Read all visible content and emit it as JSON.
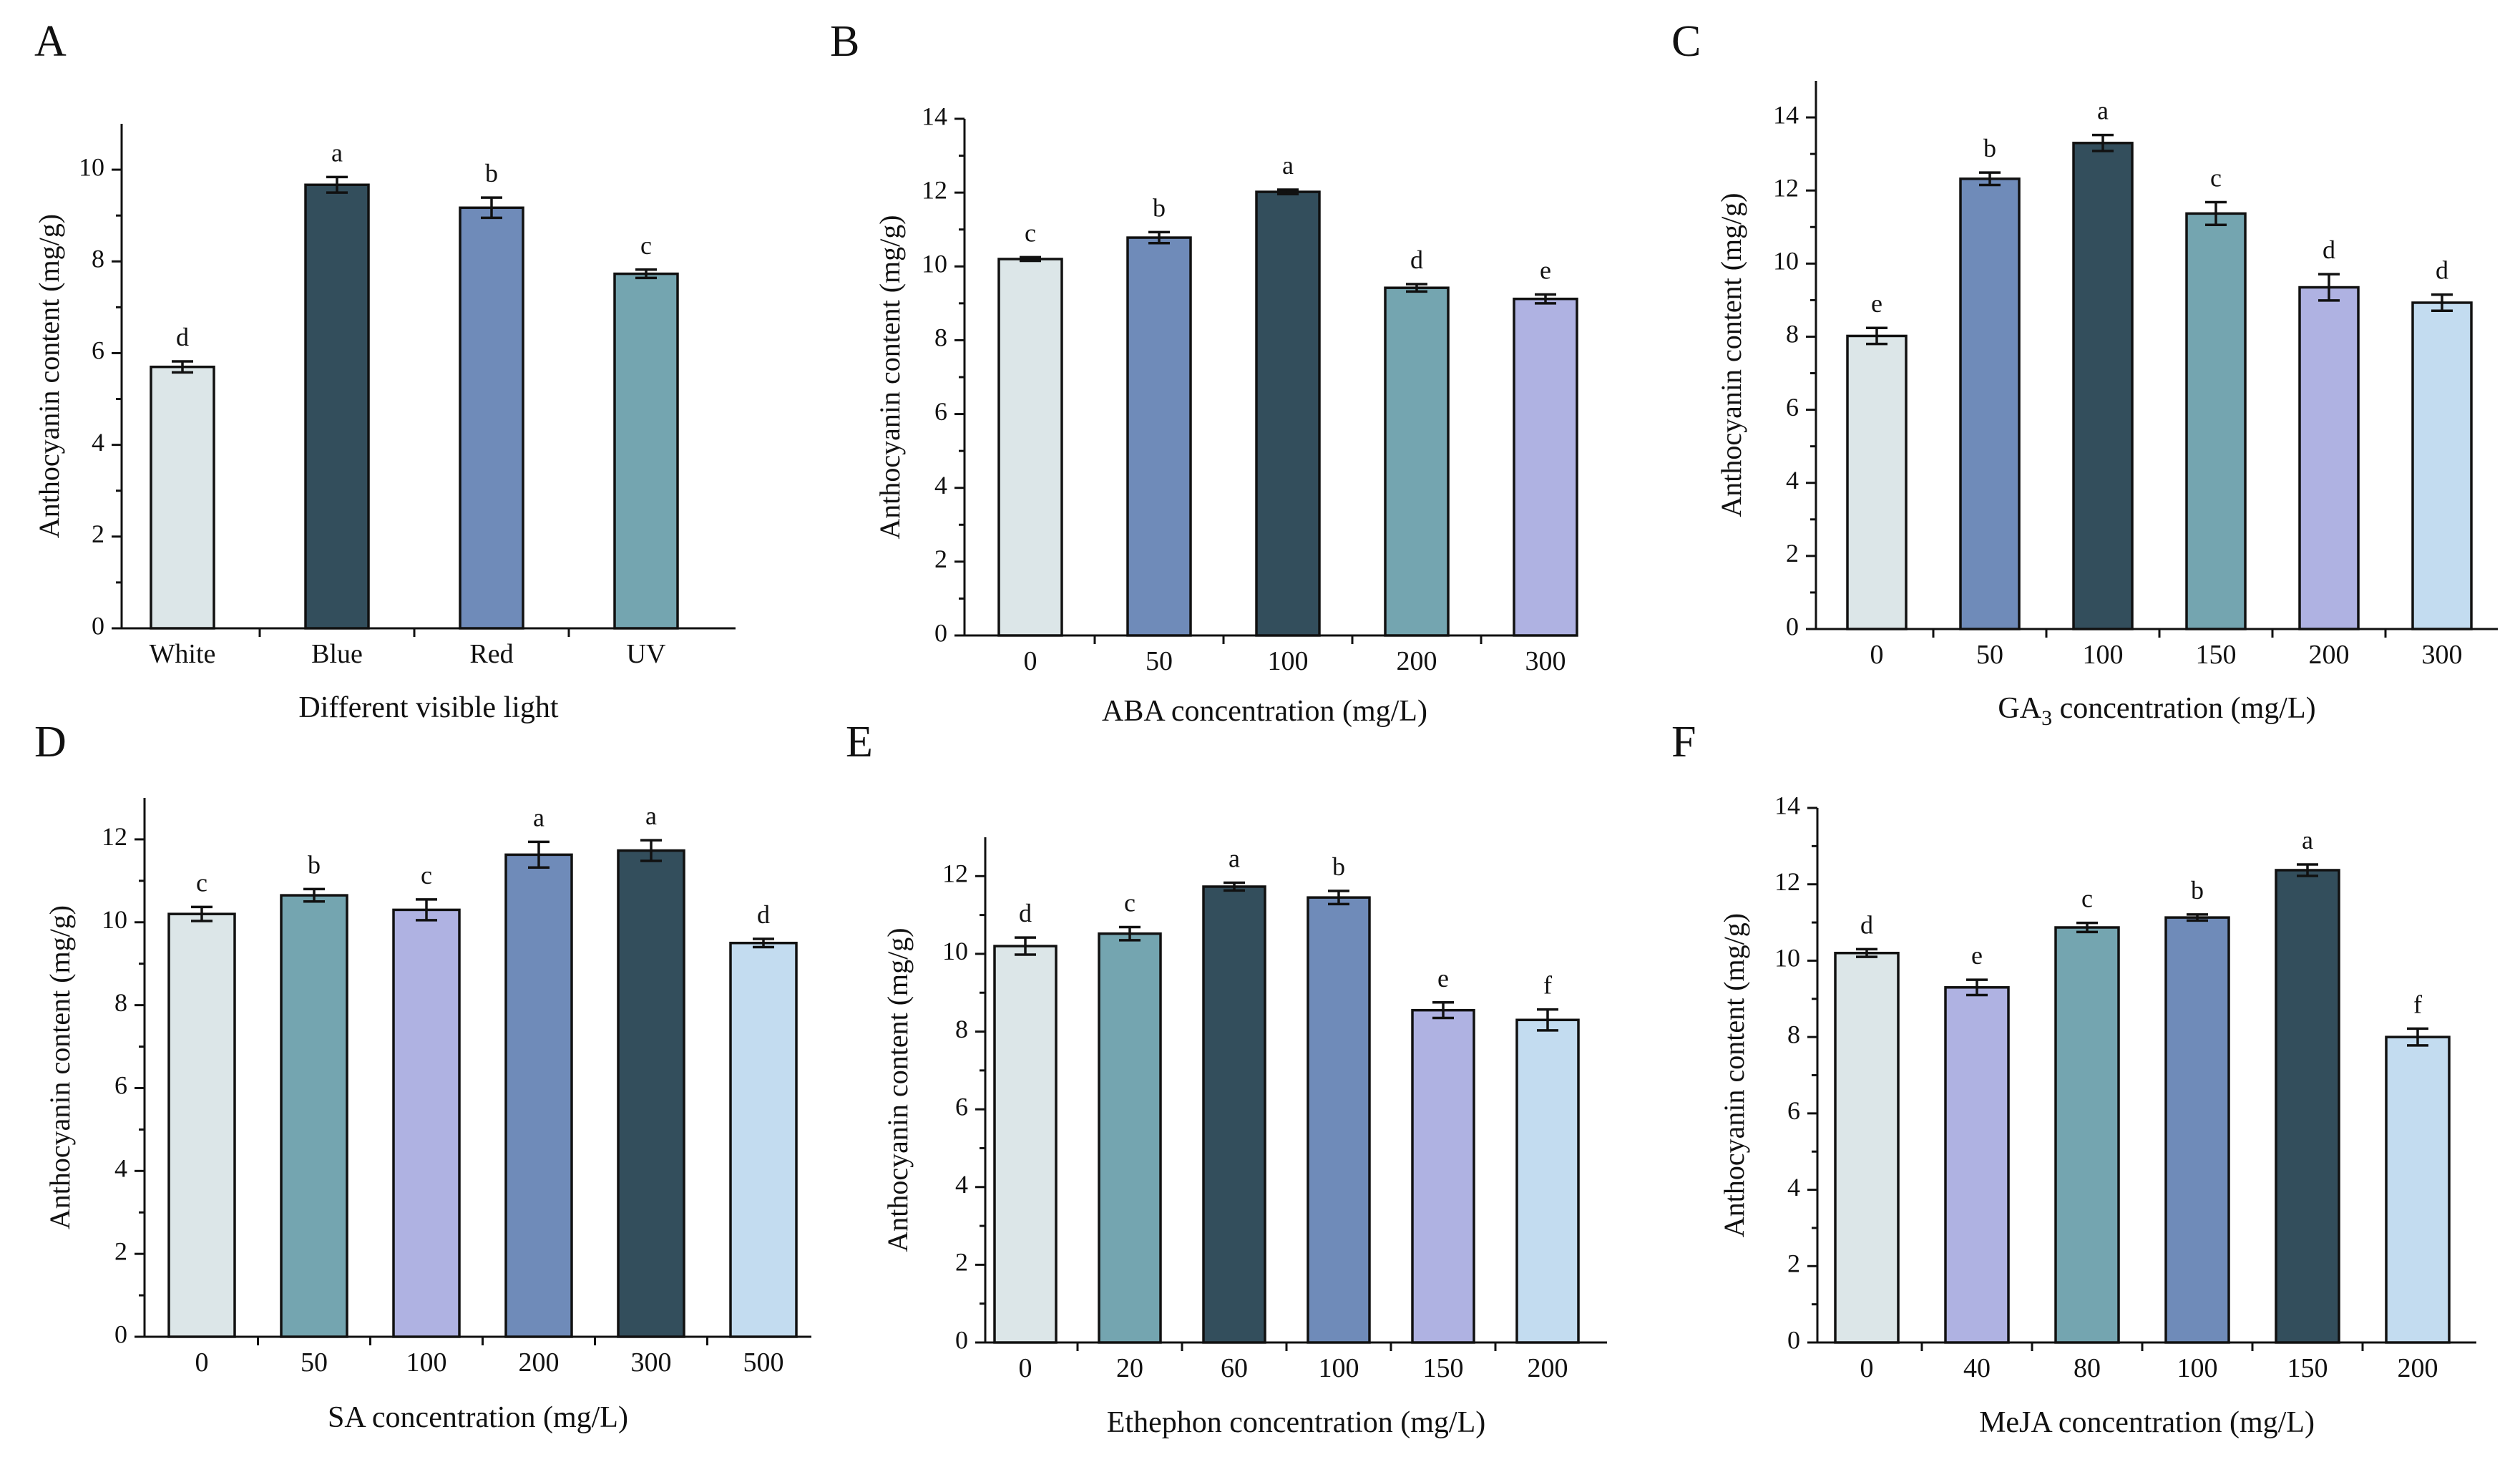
{
  "palette": {
    "ice": "#dce6e8",
    "navy": "#334e5c",
    "blue": "#6f8bb9",
    "teal": "#74a5b0",
    "lavender": "#afb2e2",
    "sky": "#c3dcf0"
  },
  "chart_data": [
    {
      "panel": "A",
      "type": "bar",
      "title": "",
      "xlabel": "Different visible light",
      "ylabel": "Anthocyanin content (mg/g)",
      "ylim": [
        0,
        11
      ],
      "yticks": [
        0,
        2,
        4,
        6,
        8,
        10
      ],
      "categories": [
        "White",
        "Blue",
        "Red",
        "UV"
      ],
      "values": [
        5.7,
        9.67,
        9.17,
        7.73
      ],
      "errors": [
        0.12,
        0.17,
        0.22,
        0.09
      ],
      "letters": [
        "d",
        "a",
        "b",
        "c"
      ],
      "colors": [
        "ice",
        "navy",
        "blue",
        "teal"
      ]
    },
    {
      "panel": "B",
      "type": "bar",
      "title": "",
      "xlabel": "ABA concentration (mg/L)",
      "ylabel": "Anthocyanin content (mg/g)",
      "ylim": [
        0,
        14
      ],
      "yticks": [
        0,
        2,
        4,
        6,
        8,
        10,
        12,
        14
      ],
      "categories": [
        "0",
        "50",
        "100",
        "200",
        "300"
      ],
      "values": [
        10.2,
        10.78,
        12.02,
        9.42,
        9.12
      ],
      "errors": [
        0.05,
        0.15,
        0.06,
        0.1,
        0.12
      ],
      "letters": [
        "c",
        "b",
        "a",
        "d",
        "e"
      ],
      "colors": [
        "ice",
        "blue",
        "navy",
        "teal",
        "lavender"
      ]
    },
    {
      "panel": "C",
      "type": "bar",
      "title": "",
      "xlabel": "GA3 concentration (mg/L)",
      "ylabel": "Anthocyanin content (mg/g)",
      "ylim": [
        0,
        15
      ],
      "yticks": [
        0,
        2,
        4,
        6,
        8,
        10,
        12,
        14
      ],
      "categories": [
        "0",
        "50",
        "100",
        "150",
        "200",
        "300"
      ],
      "values": [
        8.02,
        12.32,
        13.3,
        11.37,
        9.35,
        8.93
      ],
      "errors": [
        0.22,
        0.17,
        0.22,
        0.31,
        0.36,
        0.22
      ],
      "letters": [
        "e",
        "b",
        "a",
        "c",
        "d",
        "d"
      ],
      "colors": [
        "ice",
        "blue",
        "navy",
        "teal",
        "lavender",
        "sky"
      ]
    },
    {
      "panel": "D",
      "type": "bar",
      "title": "",
      "xlabel": "SA concentration (mg/L)",
      "ylabel": "Anthocyanin content (mg/g)",
      "ylim": [
        0,
        13
      ],
      "yticks": [
        0,
        2,
        4,
        6,
        8,
        10,
        12
      ],
      "categories": [
        "0",
        "50",
        "100",
        "200",
        "300",
        "500"
      ],
      "values": [
        10.2,
        10.65,
        10.3,
        11.63,
        11.73,
        9.5
      ],
      "errors": [
        0.17,
        0.15,
        0.25,
        0.31,
        0.25,
        0.1
      ],
      "letters": [
        "c",
        "b",
        "c",
        "a",
        "a",
        "d"
      ],
      "colors": [
        "ice",
        "teal",
        "lavender",
        "blue",
        "navy",
        "sky"
      ]
    },
    {
      "panel": "E",
      "type": "bar",
      "title": "",
      "xlabel": "Ethephon concentration (mg/L)",
      "ylabel": "Anthocyanin content (mg/g)",
      "ylim": [
        0,
        13
      ],
      "yticks": [
        0,
        2,
        4,
        6,
        8,
        10,
        12
      ],
      "categories": [
        "0",
        "20",
        "60",
        "100",
        "150",
        "200"
      ],
      "values": [
        10.2,
        10.52,
        11.73,
        11.45,
        8.55,
        8.3
      ],
      "errors": [
        0.22,
        0.17,
        0.1,
        0.17,
        0.2,
        0.27
      ],
      "letters": [
        "d",
        "c",
        "a",
        "b",
        "e",
        "f"
      ],
      "colors": [
        "ice",
        "teal",
        "navy",
        "blue",
        "lavender",
        "sky"
      ]
    },
    {
      "panel": "F",
      "type": "bar",
      "title": "",
      "xlabel": "MeJA concentration (mg/L)",
      "ylabel": "Anthocyanin content (mg/g)",
      "ylim": [
        0,
        14
      ],
      "yticks": [
        0,
        2,
        4,
        6,
        8,
        10,
        12,
        14
      ],
      "categories": [
        "0",
        "40",
        "80",
        "100",
        "150",
        "200"
      ],
      "values": [
        10.2,
        9.3,
        10.87,
        11.13,
        12.37,
        8.0
      ],
      "errors": [
        0.1,
        0.2,
        0.12,
        0.08,
        0.15,
        0.22
      ],
      "letters": [
        "d",
        "e",
        "c",
        "b",
        "a",
        "f"
      ],
      "colors": [
        "ice",
        "lavender",
        "teal",
        "blue",
        "navy",
        "sky"
      ]
    }
  ]
}
